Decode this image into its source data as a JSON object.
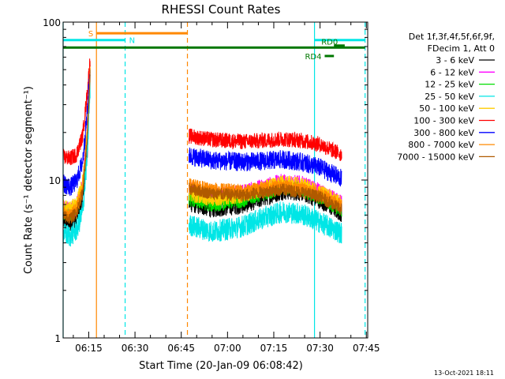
{
  "chart_data": {
    "type": "line",
    "title": "RHESSI Count Rates",
    "xlabel": "Start Time (20-Jan-09 06:08:42)",
    "ylabel": "Count Rate (s⁻¹ detector segment⁻¹)",
    "y_scale": "log",
    "ylim": [
      1,
      100
    ],
    "xlim_minutes": [
      6.7,
      97.0
    ],
    "x_ticks": [
      {
        "label": "06:15",
        "minutes": 15
      },
      {
        "label": "06:30",
        "minutes": 30
      },
      {
        "label": "06:45",
        "minutes": 45
      },
      {
        "label": "07:00",
        "minutes": 60
      },
      {
        "label": "07:15",
        "minutes": 75
      },
      {
        "label": "07:30",
        "minutes": 90
      },
      {
        "label": "07:45",
        "minutes": 105
      }
    ],
    "y_ticks": [
      {
        "label": "1",
        "value": 1
      },
      {
        "label": "10",
        "value": 10
      },
      {
        "label": "100",
        "value": 100
      }
    ],
    "legend": {
      "placement": "right",
      "header": [
        "Det 1f,3f,4f,5f,6f,9f,",
        "FDecim 1, Att 0"
      ],
      "entries": [
        {
          "label": "3 - 6 keV",
          "color": "#000000"
        },
        {
          "label": "6 - 12 keV",
          "color": "#ff00ff"
        },
        {
          "label": "12 - 25 keV",
          "color": "#00dd00"
        },
        {
          "label": "25 - 50 keV",
          "color": "#00e6e6"
        },
        {
          "label": "50 - 100 keV",
          "color": "#ffcc00"
        },
        {
          "label": "100 - 300 keV",
          "color": "#ff0000"
        },
        {
          "label": "300 - 800 keV",
          "color": "#0000ff"
        },
        {
          "label": "800 - 7000 keV",
          "color": "#ff8800"
        },
        {
          "label": "7000 - 15000 keV",
          "color": "#b05a00"
        }
      ]
    },
    "segments": [
      {
        "start": 6.7,
        "end": 15.5
      },
      {
        "start": 47.5,
        "end": 97.0
      }
    ],
    "series": [
      {
        "name": "3 - 6 keV",
        "color": "#000000",
        "noise": 0.06,
        "points": [
          [
            6.7,
            5.6
          ],
          [
            9,
            5.3
          ],
          [
            11,
            5.8
          ],
          [
            13,
            7.5
          ],
          [
            14.5,
            15
          ],
          [
            15.5,
            45
          ],
          [
            47.5,
            7.2
          ],
          [
            55,
            6.6
          ],
          [
            65,
            7.0
          ],
          [
            72,
            7.8
          ],
          [
            78,
            8.6
          ],
          [
            84,
            8.4
          ],
          [
            90,
            7.5
          ],
          [
            97,
            6.2
          ]
        ]
      },
      {
        "name": "6 - 12 keV",
        "color": "#ff00ff",
        "noise": 0.06,
        "points": [
          [
            6.7,
            6.6
          ],
          [
            9,
            6.3
          ],
          [
            11,
            6.8
          ],
          [
            13,
            9
          ],
          [
            14.5,
            20
          ],
          [
            15.5,
            52
          ],
          [
            47.5,
            8.5
          ],
          [
            55,
            7.8
          ],
          [
            65,
            8.2
          ],
          [
            72,
            9.0
          ],
          [
            78,
            9.6
          ],
          [
            84,
            9.3
          ],
          [
            90,
            8.3
          ],
          [
            97,
            7.0
          ]
        ]
      },
      {
        "name": "12 - 25 keV",
        "color": "#00dd00",
        "noise": 0.05,
        "points": [
          [
            6.7,
            6.3
          ],
          [
            9,
            6.0
          ],
          [
            11,
            6.5
          ],
          [
            13,
            8.5
          ],
          [
            14.5,
            18
          ],
          [
            15.5,
            48
          ],
          [
            47.5,
            7.6
          ],
          [
            55,
            7.0
          ],
          [
            65,
            7.5
          ],
          [
            72,
            8.3
          ],
          [
            78,
            9.0
          ],
          [
            84,
            8.7
          ],
          [
            90,
            7.8
          ],
          [
            97,
            6.5
          ]
        ]
      },
      {
        "name": "25 - 50 keV",
        "color": "#00e6e6",
        "noise": 0.07,
        "points": [
          [
            6.7,
            4.6
          ],
          [
            9,
            4.4
          ],
          [
            11,
            4.8
          ],
          [
            13,
            6.2
          ],
          [
            14.5,
            14
          ],
          [
            15.5,
            40
          ],
          [
            47.5,
            5.2
          ],
          [
            55,
            4.7
          ],
          [
            65,
            5.1
          ],
          [
            72,
            5.8
          ],
          [
            78,
            6.3
          ],
          [
            84,
            6.1
          ],
          [
            90,
            5.4
          ],
          [
            97,
            4.6
          ]
        ]
      },
      {
        "name": "50 - 100 keV",
        "color": "#ffcc00",
        "noise": 0.05,
        "points": [
          [
            6.7,
            6.8
          ],
          [
            9,
            6.6
          ],
          [
            11,
            7.0
          ],
          [
            13,
            9.5
          ],
          [
            14.5,
            21
          ],
          [
            15.5,
            55
          ],
          [
            47.5,
            8.2
          ],
          [
            55,
            7.6
          ],
          [
            65,
            8.0
          ],
          [
            72,
            8.9
          ],
          [
            78,
            9.6
          ],
          [
            84,
            9.3
          ],
          [
            90,
            8.4
          ],
          [
            97,
            7.1
          ]
        ]
      },
      {
        "name": "100 - 300 keV",
        "color": "#ff0000",
        "noise": 0.05,
        "points": [
          [
            6.7,
            14
          ],
          [
            9,
            13.7
          ],
          [
            11,
            14.5
          ],
          [
            13,
            19
          ],
          [
            14.5,
            35
          ],
          [
            15.5,
            60
          ],
          [
            47.5,
            19
          ],
          [
            55,
            18
          ],
          [
            65,
            17.5
          ],
          [
            72,
            17.8
          ],
          [
            78,
            18.2
          ],
          [
            84,
            17.8
          ],
          [
            90,
            16.8
          ],
          [
            97,
            14.5
          ]
        ]
      },
      {
        "name": "300 - 800 keV",
        "color": "#0000ff",
        "noise": 0.06,
        "points": [
          [
            6.7,
            9.5
          ],
          [
            9,
            9.0
          ],
          [
            11,
            9.8
          ],
          [
            13,
            13
          ],
          [
            14.5,
            26
          ],
          [
            15.5,
            52
          ],
          [
            47.5,
            14.2
          ],
          [
            55,
            13.3
          ],
          [
            65,
            13.0
          ],
          [
            72,
            13.2
          ],
          [
            78,
            13.5
          ],
          [
            84,
            13.0
          ],
          [
            90,
            12.0
          ],
          [
            97,
            10.2
          ]
        ]
      },
      {
        "name": "800 - 7000 keV",
        "color": "#ff8800",
        "noise": 0.04,
        "points": [
          [
            6.7,
            6.2
          ],
          [
            9,
            6.0
          ],
          [
            11,
            6.5
          ],
          [
            13,
            8.8
          ],
          [
            14.5,
            19
          ],
          [
            15.5,
            50
          ],
          [
            47.5,
            9.4
          ],
          [
            55,
            8.8
          ],
          [
            65,
            8.6
          ],
          [
            72,
            8.9
          ],
          [
            78,
            9.2
          ],
          [
            84,
            8.9
          ],
          [
            90,
            8.2
          ],
          [
            97,
            6.9
          ]
        ]
      },
      {
        "name": "7000 - 15000 keV",
        "color": "#b05a00",
        "noise": 0.04,
        "points": [
          [
            6.7,
            5.9
          ],
          [
            9,
            5.7
          ],
          [
            11,
            6.2
          ],
          [
            13,
            8.3
          ],
          [
            14.5,
            18
          ],
          [
            15.5,
            47
          ],
          [
            47.5,
            8.8
          ],
          [
            55,
            8.2
          ],
          [
            65,
            8.0
          ],
          [
            72,
            8.4
          ],
          [
            78,
            8.7
          ],
          [
            84,
            8.4
          ],
          [
            90,
            7.8
          ],
          [
            97,
            6.5
          ]
        ]
      }
    ],
    "vertical_markers": [
      {
        "minutes": 6.7,
        "color": "#00e6e6",
        "style": "solid"
      },
      {
        "minutes": 17.5,
        "color": "#ff8800",
        "style": "solid"
      },
      {
        "minutes": 26.8,
        "color": "#00e6e6",
        "style": "dashed"
      },
      {
        "minutes": 47.0,
        "color": "#ff8800",
        "style": "dashed"
      },
      {
        "minutes": 88.2,
        "color": "#00e6e6",
        "style": "solid"
      },
      {
        "minutes": 104.6,
        "color": "#00e6e6",
        "style": "dashed"
      }
    ],
    "annotation_bars": [
      {
        "label": "S",
        "color": "#ff8800",
        "start": 17.5,
        "end": 47.0,
        "level": 85,
        "label_pos": "left"
      },
      {
        "label": "N",
        "color": "#00e6e6",
        "start": 6.7,
        "end": 26.8,
        "level": 77,
        "label_pos": "right"
      },
      {
        "label": "",
        "color": "#00e6e6",
        "start": 88.2,
        "end": 104.6,
        "level": 77,
        "label_pos": "none"
      },
      {
        "label": "",
        "color": "#007700",
        "start": 6.7,
        "end": 104.6,
        "level": 69,
        "label_pos": "none"
      },
      {
        "label": "RD0",
        "color": "#007700",
        "start": 94.5,
        "end": 98.0,
        "level": 71,
        "label_pos": "right-inline"
      },
      {
        "label": "RD4",
        "color": "#007700",
        "start": 91.5,
        "end": 94.5,
        "level": 61,
        "label_pos": "left"
      }
    ]
  },
  "footer": {
    "timestamp": "13-Oct-2021 18:11"
  }
}
